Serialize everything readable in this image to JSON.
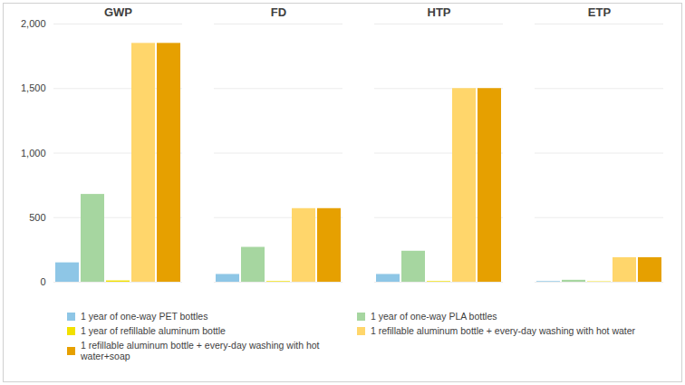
{
  "chart_data": {
    "type": "bar",
    "categories": [
      "GWP",
      "FD",
      "HTP",
      "ETP"
    ],
    "series": [
      {
        "name": "1 year of one-way PET bottles",
        "color": "#8ec6e6",
        "values": [
          150,
          60,
          60,
          5
        ]
      },
      {
        "name": "1 year of one-way PLA bottles",
        "color": "#a6d6a0",
        "values": [
          680,
          270,
          240,
          15
        ]
      },
      {
        "name": "1 year of refillable aluminum bottle",
        "color": "#f2e000",
        "values": [
          10,
          5,
          5,
          3
        ]
      },
      {
        "name": "1 refillable aluminum bottle + every-day washing with hot water",
        "color": "#ffd66b",
        "values": [
          1850,
          570,
          1500,
          190
        ]
      },
      {
        "name": "1 refillable aluminum bottle + every-day washing with hot water+soap",
        "color": "#e6a000",
        "values": [
          1850,
          570,
          1500,
          190
        ]
      }
    ],
    "ylim": [
      0,
      2000
    ],
    "yticks": [
      0,
      500,
      1000,
      1500,
      2000
    ],
    "grid": true,
    "legend": "bottom"
  }
}
